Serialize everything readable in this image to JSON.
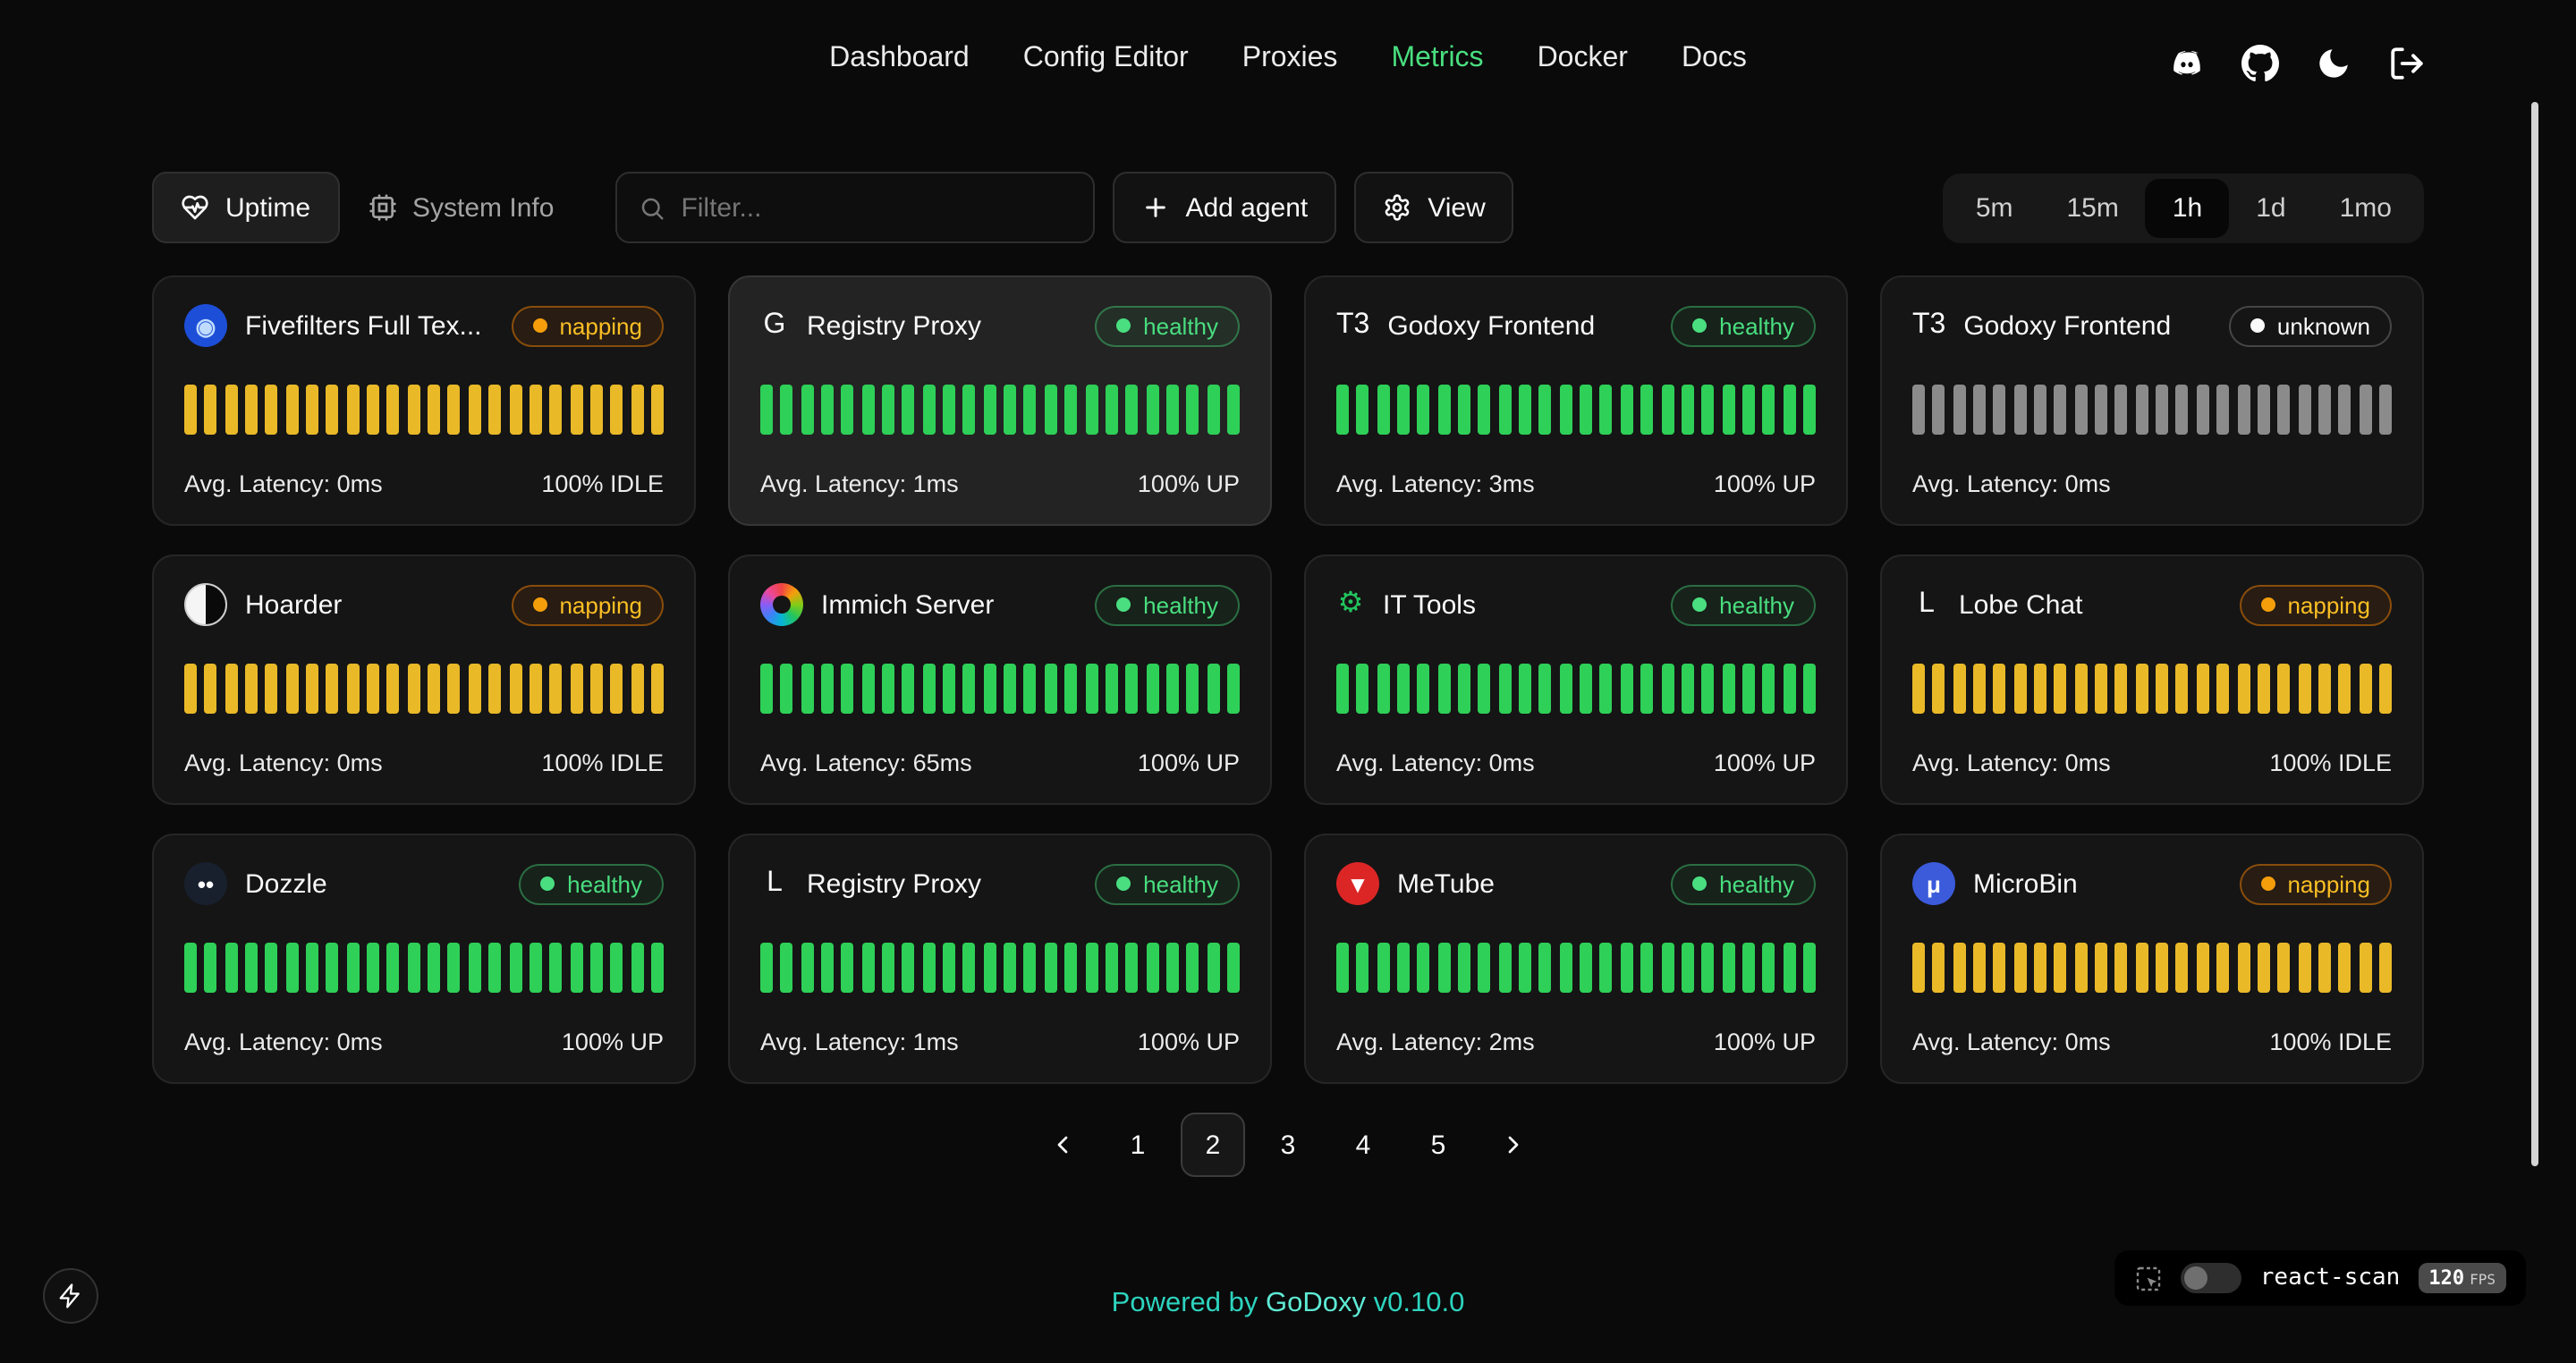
{
  "nav": {
    "items": [
      {
        "label": "Dashboard",
        "active": false
      },
      {
        "label": "Config Editor",
        "active": false
      },
      {
        "label": "Proxies",
        "active": false
      },
      {
        "label": "Metrics",
        "active": true
      },
      {
        "label": "Docker",
        "active": false
      },
      {
        "label": "Docs",
        "active": false
      }
    ]
  },
  "header_icons": [
    "discord-icon",
    "github-icon",
    "moon-icon",
    "logout-icon"
  ],
  "toolbar": {
    "uptime_label": "Uptime",
    "system_info_label": "System Info",
    "filter_placeholder": "Filter...",
    "add_agent_label": "Add agent",
    "view_label": "View",
    "time_ranges": [
      {
        "label": "5m",
        "active": false
      },
      {
        "label": "15m",
        "active": false
      },
      {
        "label": "1h",
        "active": true
      },
      {
        "label": "1d",
        "active": false
      },
      {
        "label": "1mo",
        "active": false
      }
    ]
  },
  "colors": {
    "accent_green": "#4ade80",
    "healthy": "#4ade80",
    "napping": "#fbbf24",
    "unknown": "#fafafa",
    "bar_green": "#2ed058",
    "bar_yellow": "#e9b928",
    "bar_gray": "#8b8b8b",
    "footer_teal": "#2dd4bf"
  },
  "bars_per_card": 24,
  "cards": [
    {
      "title": "Fivefilters Full Tex...",
      "status": "napping",
      "latency": "Avg. Latency: 0ms",
      "uptime": "100% IDLE",
      "bars": "yellow",
      "highlighted": false,
      "icon": {
        "name": "fivefilters-icon",
        "kind": "circle",
        "bg": "#1d4ed8",
        "fg": "#bfdbfe",
        "glyph": "◉"
      }
    },
    {
      "title": "Registry Proxy",
      "status": "healthy",
      "latency": "Avg. Latency: 1ms",
      "uptime": "100% UP",
      "bars": "green",
      "highlighted": true,
      "icon": {
        "name": "registry-proxy-icon",
        "kind": "letter",
        "glyph": "G",
        "fg": "#fafafa"
      }
    },
    {
      "title": "Godoxy Frontend",
      "status": "healthy",
      "latency": "Avg. Latency: 3ms",
      "uptime": "100% UP",
      "bars": "green",
      "highlighted": false,
      "icon": {
        "name": "godoxy-frontend-icon",
        "kind": "letter",
        "glyph": "T3",
        "fg": "#fafafa"
      }
    },
    {
      "title": "Godoxy Frontend",
      "status": "unknown",
      "latency": "Avg. Latency: 0ms",
      "uptime": "",
      "bars": "gray",
      "highlighted": false,
      "icon": {
        "name": "godoxy-frontend-icon",
        "kind": "letter",
        "glyph": "T3",
        "fg": "#fafafa"
      }
    },
    {
      "title": "Hoarder",
      "status": "napping",
      "latency": "Avg. Latency: 0ms",
      "uptime": "100% IDLE",
      "bars": "yellow",
      "highlighted": false,
      "icon": {
        "name": "hoarder-icon",
        "kind": "split"
      }
    },
    {
      "title": "Immich Server",
      "status": "healthy",
      "latency": "Avg. Latency: 65ms",
      "uptime": "100% UP",
      "bars": "green",
      "highlighted": false,
      "icon": {
        "name": "immich-icon",
        "kind": "gradient"
      }
    },
    {
      "title": "IT Tools",
      "status": "healthy",
      "latency": "Avg. Latency: 0ms",
      "uptime": "100% UP",
      "bars": "green",
      "highlighted": false,
      "icon": {
        "name": "it-tools-icon",
        "kind": "letter",
        "glyph": "⚙",
        "fg": "#22c55e"
      }
    },
    {
      "title": "Lobe Chat",
      "status": "napping",
      "latency": "Avg. Latency: 0ms",
      "uptime": "100% IDLE",
      "bars": "yellow",
      "highlighted": false,
      "icon": {
        "name": "lobe-chat-icon",
        "kind": "letter",
        "glyph": "L",
        "fg": "#fafafa"
      }
    },
    {
      "title": "Dozzle",
      "status": "healthy",
      "latency": "Avg. Latency: 0ms",
      "uptime": "100% UP",
      "bars": "green",
      "highlighted": false,
      "icon": {
        "name": "dozzle-icon",
        "kind": "circle",
        "bg": "#18202e",
        "fg": "#ffffff",
        "glyph": "••"
      }
    },
    {
      "title": "Registry Proxy",
      "status": "healthy",
      "latency": "Avg. Latency: 1ms",
      "uptime": "100% UP",
      "bars": "green",
      "highlighted": false,
      "icon": {
        "name": "registry-proxy-icon",
        "kind": "letter",
        "glyph": "L",
        "fg": "#fafafa"
      }
    },
    {
      "title": "MeTube",
      "status": "healthy",
      "latency": "Avg. Latency: 2ms",
      "uptime": "100% UP",
      "bars": "green",
      "highlighted": false,
      "icon": {
        "name": "metube-icon",
        "kind": "circle",
        "bg": "#dc2626",
        "fg": "#ffffff",
        "glyph": "▼"
      }
    },
    {
      "title": "MicroBin",
      "status": "napping",
      "latency": "Avg. Latency: 0ms",
      "uptime": "100% IDLE",
      "bars": "yellow",
      "highlighted": false,
      "icon": {
        "name": "microbin-icon",
        "kind": "circle",
        "bg": "#3b5bdb",
        "fg": "#ffffff",
        "glyph": "μ"
      }
    }
  ],
  "pagination": {
    "pages": [
      "1",
      "2",
      "3",
      "4",
      "5"
    ],
    "active_page": "2"
  },
  "footer": {
    "powered_by": "Powered by",
    "brand": "GoDoxy",
    "version": "v0.10.0"
  },
  "react_scan": {
    "label": "react-scan",
    "fps": "120",
    "fps_unit": "FPS"
  }
}
